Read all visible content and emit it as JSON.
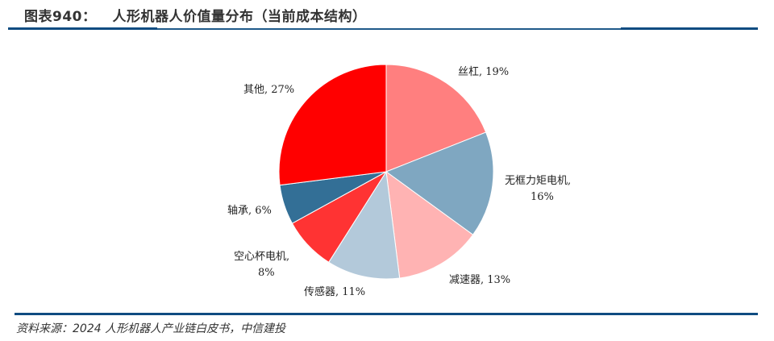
{
  "header": {
    "figure_no": "图表940：",
    "title": "人形机器人价值量分布（当前成本结构）"
  },
  "footer": {
    "source": "资料来源：2024 人形机器人产业链白皮书，中信建投"
  },
  "labels": {
    "screw": "丝杠, 19%",
    "frameless_motor_line1": "无框力矩电机,",
    "frameless_motor_line2": "16%",
    "reducer": "减速器, 13%",
    "sensor": "传感器, 11%",
    "coreless_motor_line1": "空心杯电机,",
    "coreless_motor_line2": "8%",
    "bearing": "轴承, 6%",
    "other": "其他, 27%"
  },
  "chart_data": {
    "type": "pie",
    "title": "人形机器人价值量分布（当前成本结构）",
    "categories": [
      "丝杠",
      "无框力矩电机",
      "减速器",
      "传感器",
      "空心杯电机",
      "轴承",
      "其他"
    ],
    "values": [
      19,
      16,
      13,
      11,
      8,
      6,
      27
    ],
    "unit": "%",
    "colors": [
      "#ff7f7f",
      "#7fa7c1",
      "#ffb3b3",
      "#b3c9da",
      "#ff3333",
      "#336f96",
      "#ff0000"
    ],
    "start_angle": "12 o'clock, clockwise",
    "legend": "none (data labels outside slices)"
  }
}
